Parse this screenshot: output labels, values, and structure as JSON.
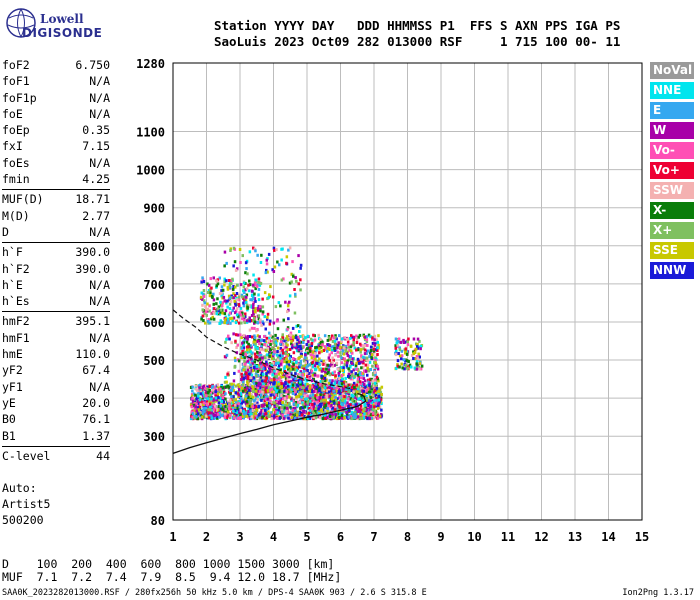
{
  "logo": {
    "line1": "Lowell",
    "line2": "DIGISONDE"
  },
  "header": {
    "row1": "Station YYYY DAY   DDD HHMMSS P1  FFS S AXN PPS IGA PS",
    "row2": "SaoLuis 2023 Oct09 282 013000 RSF     1 715 100 00- 11"
  },
  "params": [
    [
      {
        "k": "foF2",
        "v": "6.750"
      },
      {
        "k": "foF1",
        "v": "N/A"
      },
      {
        "k": "foF1p",
        "v": "N/A"
      },
      {
        "k": "foE",
        "v": "N/A"
      },
      {
        "k": "foEp",
        "v": "0.35"
      },
      {
        "k": "fxI",
        "v": "7.15"
      },
      {
        "k": "foEs",
        "v": "N/A"
      },
      {
        "k": "fmin",
        "v": "4.25"
      }
    ],
    [
      {
        "k": "MUF(D)",
        "v": "18.71"
      },
      {
        "k": "M(D)",
        "v": "2.77"
      },
      {
        "k": "D",
        "v": "N/A"
      }
    ],
    [
      {
        "k": "h`F",
        "v": "390.0"
      },
      {
        "k": "h`F2",
        "v": "390.0"
      },
      {
        "k": "h`E",
        "v": "N/A"
      },
      {
        "k": "h`Es",
        "v": "N/A"
      }
    ],
    [
      {
        "k": "hmF2",
        "v": "395.1"
      },
      {
        "k": "hmF1",
        "v": "N/A"
      },
      {
        "k": "hmE",
        "v": "110.0"
      },
      {
        "k": "yF2",
        "v": "67.4"
      },
      {
        "k": "yF1",
        "v": "N/A"
      },
      {
        "k": "yE",
        "v": "20.0"
      },
      {
        "k": "B0",
        "v": "76.1"
      },
      {
        "k": "B1",
        "v": "1.37"
      }
    ],
    [
      {
        "k": "C-level",
        "v": "44"
      }
    ]
  ],
  "auto": {
    "l1": "Auto:",
    "l2": "Artist5",
    "l3": "500200"
  },
  "muf_table": {
    "row1": "D    100  200  400  600  800 1000 1500 3000 [km]",
    "row2": "MUF  7.1  7.2  7.4  7.9  8.5  9.4 12.0 18.7 [MHz]"
  },
  "footer": "SAA0K_2023282013000.RSF / 280fx256h 50 kHz 5.0 km / DPS-4 SAA0K 903 / 2.6 S 315.8 E",
  "version": "Ion2Png 1.3.17",
  "legend": [
    {
      "label": "NoVal",
      "color": "#9a9a9a"
    },
    {
      "label": "NNE",
      "color": "#00e5ee"
    },
    {
      "label": "E",
      "color": "#35a8f0"
    },
    {
      "label": "W",
      "color": "#a800a8"
    },
    {
      "label": "Vo-",
      "color": "#ff4fb5"
    },
    {
      "label": "Vo+",
      "color": "#ee0033"
    },
    {
      "label": "SSW",
      "color": "#f4b1b1"
    },
    {
      "label": "X-",
      "color": "#0a7d0a"
    },
    {
      "label": "X+",
      "color": "#7fc060"
    },
    {
      "label": "SSE",
      "color": "#c8c800"
    },
    {
      "label": "NNW",
      "color": "#1a1ad8"
    }
  ],
  "chart_data": {
    "type": "scatter",
    "title": "",
    "xlabel": "",
    "ylabel": "",
    "xlim": [
      1,
      15
    ],
    "ylim": [
      80,
      1280
    ],
    "xticks": [
      1,
      2,
      3,
      4,
      5,
      6,
      7,
      8,
      9,
      10,
      11,
      12,
      13,
      14,
      15
    ],
    "yticks": [
      80,
      200,
      300,
      400,
      500,
      600,
      700,
      800,
      900,
      1000,
      1100,
      1280
    ],
    "grid": true,
    "traces": {
      "profile_solid": {
        "x": [
          1.0,
          1.5,
          2.0,
          2.5,
          3.0,
          3.5,
          4.0,
          4.5,
          5.0,
          5.5,
          6.0,
          6.5,
          6.75,
          6.7,
          6.6,
          6.5
        ],
        "y": [
          255,
          270,
          283,
          295,
          307,
          318,
          330,
          340,
          350,
          358,
          368,
          378,
          392,
          405,
          410,
          412
        ]
      },
      "profile_dashed": {
        "x": [
          1.0,
          1.3,
          1.7,
          2.0,
          2.5,
          3.0,
          3.5,
          4.0,
          4.5,
          5.0,
          5.5,
          6.0,
          6.3
        ],
        "y": [
          632,
          610,
          585,
          560,
          535,
          515,
          500,
          480,
          462,
          448,
          438,
          430,
          425
        ]
      }
    },
    "echo_clusters": [
      {
        "x": [
          1.5,
          7.2
        ],
        "y": [
          350,
          440
        ],
        "n": 2200
      },
      {
        "x": [
          3.0,
          7.1
        ],
        "y": [
          420,
          570
        ],
        "n": 1500
      },
      {
        "x": [
          1.8,
          3.6
        ],
        "y": [
          600,
          720
        ],
        "n": 300
      },
      {
        "x": [
          2.5,
          4.8
        ],
        "y": [
          440,
          800
        ],
        "n": 280
      },
      {
        "x": [
          7.6,
          8.4
        ],
        "y": [
          480,
          560
        ],
        "n": 120
      }
    ]
  }
}
